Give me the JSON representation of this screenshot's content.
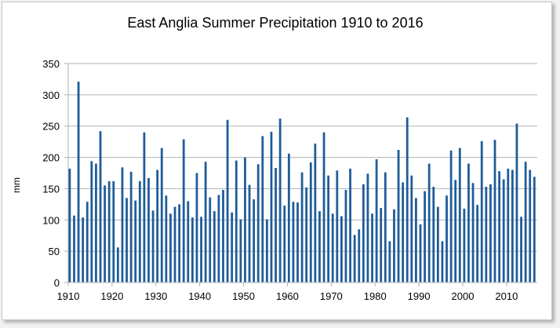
{
  "chart_data": {
    "type": "bar",
    "title": "East Anglia Summer Precipitation 1910 to 2016",
    "xlabel": "",
    "ylabel": "mm",
    "ylim": [
      0,
      350
    ],
    "ytick_values": [
      0,
      50,
      100,
      150,
      200,
      250,
      300,
      350
    ],
    "ytick_labels": [
      "0",
      "50",
      "100",
      "150",
      "200",
      "250",
      "300",
      "350"
    ],
    "xtick_values": [
      1910,
      1920,
      1930,
      1940,
      1950,
      1960,
      1970,
      1980,
      1990,
      2000,
      2010
    ],
    "xtick_labels": [
      "1910",
      "1920",
      "1930",
      "1940",
      "1950",
      "1960",
      "1970",
      "1980",
      "1990",
      "2000",
      "2010"
    ],
    "xlim": [
      1910,
      2017
    ],
    "grid": "horizontal",
    "bar_color": "#1f5c99",
    "series": [
      {
        "years": [
          1910,
          1911,
          1912,
          1913,
          1914,
          1915,
          1916,
          1917,
          1918,
          1919,
          1920,
          1921,
          1922,
          1923,
          1924,
          1925,
          1926,
          1927,
          1928,
          1929,
          1930,
          1931,
          1932,
          1933,
          1934,
          1935,
          1936,
          1937,
          1938,
          1939,
          1940,
          1941,
          1942,
          1943,
          1944,
          1945,
          1946,
          1947,
          1948,
          1949,
          1950,
          1951,
          1952,
          1953,
          1954,
          1955,
          1956,
          1957,
          1958,
          1959,
          1960,
          1961,
          1962,
          1963,
          1964,
          1965,
          1966,
          1967,
          1968,
          1969,
          1970,
          1971,
          1972,
          1973,
          1974,
          1975,
          1976,
          1977,
          1978,
          1979,
          1980,
          1981,
          1982,
          1983,
          1984,
          1985,
          1986,
          1987,
          1988,
          1989,
          1990,
          1991,
          1992,
          1993,
          1994,
          1995,
          1996,
          1997,
          1998,
          1999,
          2000,
          2001,
          2002,
          2003,
          2004,
          2005,
          2006,
          2007,
          2008,
          2009,
          2010,
          2011,
          2012,
          2013,
          2014,
          2015,
          2016
        ],
        "values": [
          182,
          107,
          321,
          104,
          129,
          194,
          190,
          242,
          155,
          162,
          162,
          56,
          184,
          135,
          177,
          131,
          162,
          240,
          167,
          115,
          180,
          215,
          139,
          110,
          121,
          125,
          229,
          130,
          104,
          175,
          105,
          193,
          136,
          114,
          140,
          148,
          260,
          112,
          195,
          101,
          200,
          156,
          133,
          189,
          234,
          101,
          241,
          183,
          262,
          123,
          206,
          129,
          128,
          176,
          152,
          192,
          222,
          114,
          240,
          171,
          110,
          179,
          106,
          148,
          182,
          76,
          85,
          157,
          174,
          110,
          197,
          119,
          176,
          66,
          117,
          212,
          160,
          264,
          171,
          135,
          93,
          146,
          190,
          153,
          121,
          66,
          139,
          211,
          164,
          215,
          118,
          190,
          159,
          124,
          226,
          153,
          157,
          228,
          178,
          165,
          182,
          180,
          254,
          105,
          193,
          180,
          169
        ]
      }
    ]
  }
}
